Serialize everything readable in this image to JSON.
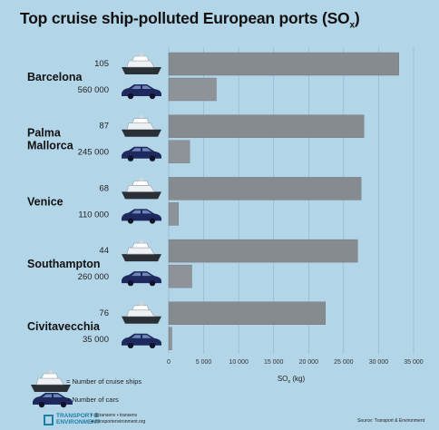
{
  "title": "Top cruise ship-polluted European ports (SO",
  "title_sub": "x",
  "title_close": ")",
  "chart_data": {
    "type": "bar",
    "title": "Top cruise ship-polluted European ports (SOx)",
    "xlabel": "SOx (kg)",
    "xlim": [
      0,
      35000
    ],
    "ticks": [
      "0",
      "5 000",
      "10 000",
      "15 000",
      "20 000",
      "25 000",
      "30 000",
      "35 000"
    ],
    "categories": [
      "Barcelona",
      "Palma Mallorca",
      "Venice",
      "Southampton",
      "Civitavecchia"
    ],
    "series": [
      {
        "name": "Number of cruise ships",
        "counts": [
          "105",
          "87",
          "68",
          "44",
          "76"
        ],
        "values": [
          32900,
          27900,
          27500,
          27000,
          22400
        ]
      },
      {
        "name": "Number of cars",
        "counts": [
          "560 000",
          "245 000",
          "110 000",
          "260 000",
          "35 000"
        ],
        "values": [
          6800,
          3000,
          1400,
          3300,
          450
        ]
      }
    ],
    "colors": {
      "ship_bar": "#868b90",
      "car_bar": "#8e9399",
      "car_icon": "#1e2a5e"
    }
  },
  "legend": {
    "ships": "= Number of cruise ships",
    "cars": "= Number of cars"
  },
  "footer": {
    "logo_line1": "TRANSPORT &",
    "logo_line2": "ENVIRONMENT",
    "social1": "@transenv",
    "social2": "transenv",
    "website": "transportenvironment.org",
    "source": "Source: Transport & Environment"
  }
}
